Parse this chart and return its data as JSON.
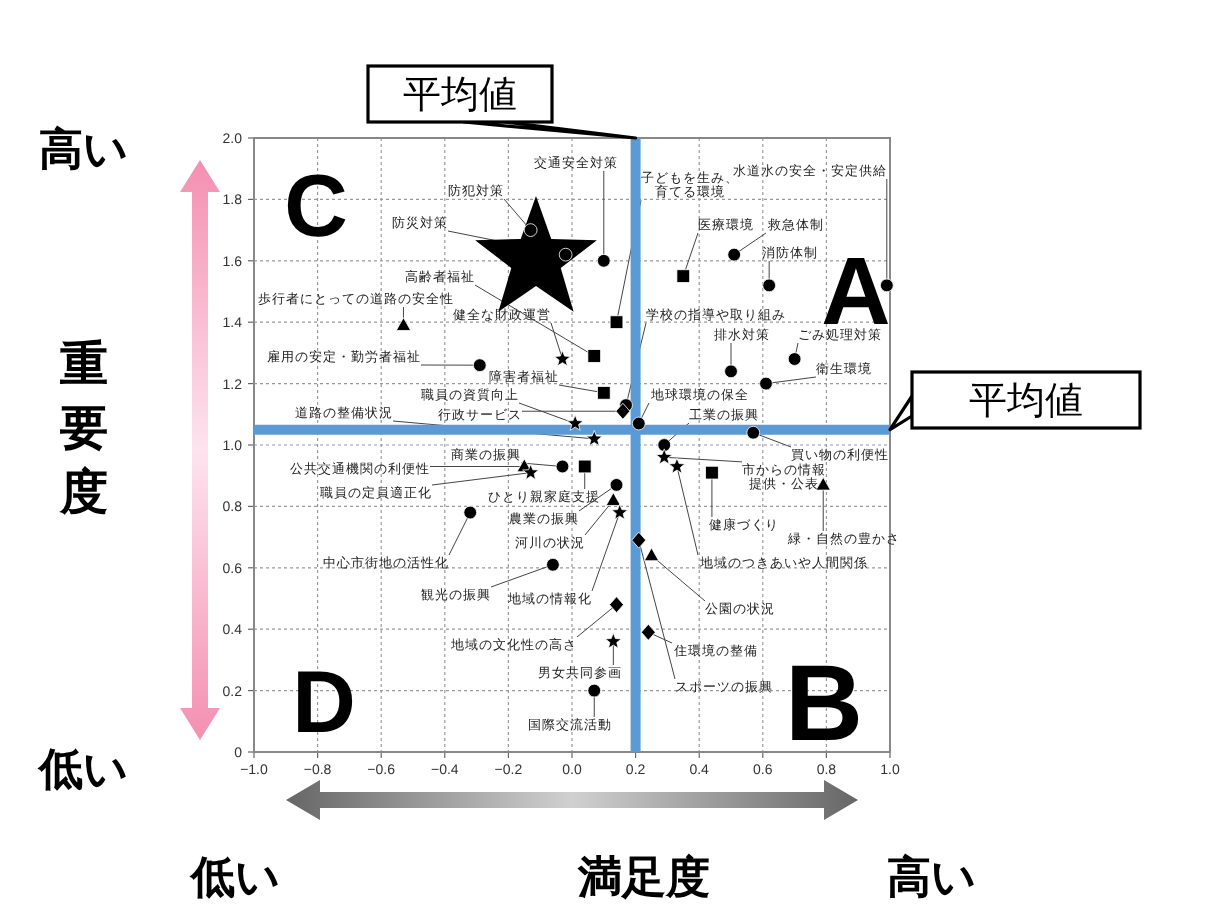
{
  "chart_data": {
    "type": "scatter",
    "xlabel": "満足度",
    "ylabel": "重要度",
    "xlim": [
      -1,
      1
    ],
    "ylim": [
      0,
      2
    ],
    "xticks": [
      {
        "value": -1,
        "label": "−1.0"
      },
      {
        "value": -0.8,
        "label": "−0.8"
      },
      {
        "value": -0.6,
        "label": "−0.6"
      },
      {
        "value": -0.4,
        "label": "−0.4"
      },
      {
        "value": -0.2,
        "label": "−0.2"
      },
      {
        "value": 0,
        "label": "0.0"
      },
      {
        "value": 0.2,
        "label": "0.2"
      },
      {
        "value": 0.4,
        "label": "0.4"
      },
      {
        "value": 0.6,
        "label": "0.6"
      },
      {
        "value": 0.8,
        "label": "0.8"
      },
      {
        "value": 1,
        "label": "1.0"
      }
    ],
    "yticks": [
      0,
      {
        "value": 0.2,
        "label": "0.2"
      },
      {
        "value": 0.4,
        "label": "0.4"
      },
      {
        "value": 0.6,
        "label": "0.6"
      },
      {
        "value": 0.8,
        "label": "0.8"
      },
      {
        "value": 1,
        "label": "1.0"
      },
      {
        "value": 1.2,
        "label": "1.2"
      },
      {
        "value": 1.4,
        "label": "1.4"
      },
      {
        "value": 1.6,
        "label": "1.6"
      },
      {
        "value": 1.8,
        "label": "1.8"
      },
      {
        "value": 2,
        "label": "2.0"
      }
    ],
    "grid": true,
    "series": [
      {
        "marker": "circle",
        "color": "#000000",
        "x": [
          0.1,
          -0.13,
          -0.02,
          0.99,
          0.51,
          0.62,
          0.17,
          0.5,
          0.7,
          -0.29,
          0.61,
          0.21,
          0.29,
          0.57,
          -0.03,
          0.14,
          -0.06,
          0.07
        ],
        "values": [
          1.6,
          1.7,
          1.62,
          1.52,
          1.62,
          1.52,
          1.13,
          1.24,
          1.28,
          1.26,
          1.2,
          1.07,
          1.0,
          1.04,
          0.93,
          0.87,
          0.61,
          0.2
        ]
      },
      {
        "marker": "square",
        "color": "#000000",
        "x": [
          0.14,
          0.35,
          0.07,
          0.1,
          0.04,
          0.44
        ],
        "values": [
          1.4,
          1.55,
          1.29,
          1.17,
          0.93,
          0.91
        ]
      },
      {
        "marker": "triangle",
        "color": "#000000",
        "x": [
          -0.53,
          -0.15,
          0.79,
          0.13,
          0.25
        ],
        "values": [
          1.39,
          0.93,
          0.87,
          0.82,
          0.64
        ]
      },
      {
        "marker": "star",
        "color": "#000000",
        "x": [
          -0.03,
          0.01,
          0.07,
          -0.13,
          0.29,
          0.33,
          0.15,
          0.13
        ],
        "values": [
          1.28,
          1.07,
          1.02,
          0.91,
          0.96,
          0.93,
          0.78,
          0.36
        ]
      },
      {
        "marker": "circle",
        "color": "#000000",
        "x": [
          -0.32
        ],
        "values": [
          0.78
        ]
      },
      {
        "marker": "diamond",
        "color": "#000000",
        "x": [
          0.16,
          0.21,
          0.24,
          0.14
        ],
        "values": [
          1.11,
          0.69,
          0.39,
          0.48
        ]
      }
    ],
    "ref_lines": [
      {
        "axis": "x",
        "value": 0.2,
        "label": "平均値",
        "color": "#5b9bd5"
      },
      {
        "axis": "y",
        "value": 1.05,
        "label": "平均値",
        "color": "#5b9bd5"
      }
    ],
    "annotations": [
      {
        "text": "交通安全対策",
        "x": 0.1,
        "y": 1.6
      },
      {
        "text": "防犯対策",
        "x": -0.13,
        "y": 1.7
      },
      {
        "text": "防災対策",
        "x": -0.02,
        "y": 1.62
      },
      {
        "text": "子どもを生み、育てる環境",
        "x": 0.14,
        "y": 1.4
      },
      {
        "text": "水道水の安全・安定供給",
        "x": 0.99,
        "y": 1.52
      },
      {
        "text": "救急体制",
        "x": 0.51,
        "y": 1.62
      },
      {
        "text": "医療環境",
        "x": 0.35,
        "y": 1.55
      },
      {
        "text": "消防体制",
        "x": 0.62,
        "y": 1.52
      },
      {
        "text": "高齢者福祉",
        "x": 0.07,
        "y": 1.29
      },
      {
        "text": "学校の指導や取り組み",
        "x": 0.17,
        "y": 1.13
      },
      {
        "text": "健全な財政運営",
        "x": -0.03,
        "y": 1.28
      },
      {
        "text": "歩行者にとっての道路の安全性",
        "x": -0.53,
        "y": 1.39
      },
      {
        "text": "排水対策",
        "x": 0.5,
        "y": 1.24
      },
      {
        "text": "ごみ処理対策",
        "x": 0.7,
        "y": 1.28
      },
      {
        "text": "雇用の安定・勤労者福祉",
        "x": -0.29,
        "y": 1.26
      },
      {
        "text": "衛生環境",
        "x": 0.61,
        "y": 1.2
      },
      {
        "text": "障害者福祉",
        "x": 0.1,
        "y": 1.17
      },
      {
        "text": "職員の資質向上",
        "x": 0.01,
        "y": 1.07
      },
      {
        "text": "地球環境の保全",
        "x": 0.21,
        "y": 1.07
      },
      {
        "text": "行政サービス",
        "x": 0.16,
        "y": 1.11
      },
      {
        "text": "道路の整備状況",
        "x": 0.07,
        "y": 1.02
      },
      {
        "text": "工業の振興",
        "x": 0.29,
        "y": 1.0
      },
      {
        "text": "買い物の利便性",
        "x": 0.57,
        "y": 1.04
      },
      {
        "text": "商業の振興",
        "x": -0.03,
        "y": 0.93
      },
      {
        "text": "公共交通機関の利便性",
        "x": -0.15,
        "y": 0.93
      },
      {
        "text": "ひとり親家庭支援",
        "x": 0.04,
        "y": 0.93
      },
      {
        "text": "職員の定員適正化",
        "x": -0.13,
        "y": 0.91
      },
      {
        "text": "市からの情報提供・公表",
        "x": 0.29,
        "y": 0.96
      },
      {
        "text": "地域のつきあいや人間関係",
        "x": 0.33,
        "y": 0.93
      },
      {
        "text": "健康づくり",
        "x": 0.44,
        "y": 0.91
      },
      {
        "text": "緑・自然の豊かさ",
        "x": 0.79,
        "y": 0.87
      },
      {
        "text": "農業の振興",
        "x": 0.14,
        "y": 0.87
      },
      {
        "text": "河川の状況",
        "x": 0.13,
        "y": 0.82
      },
      {
        "text": "地域の情報化",
        "x": 0.15,
        "y": 0.78
      },
      {
        "text": "中心市街地の活性化",
        "x": -0.32,
        "y": 0.78
      },
      {
        "text": "観光の振興",
        "x": -0.06,
        "y": 0.61
      },
      {
        "text": "公園の状況",
        "x": 0.25,
        "y": 0.64
      },
      {
        "text": "スポーツの振興",
        "x": 0.21,
        "y": 0.69
      },
      {
        "text": "住環境の整備",
        "x": 0.24,
        "y": 0.39
      },
      {
        "text": "地域の文化性の高さ",
        "x": 0.14,
        "y": 0.48
      },
      {
        "text": "男女共同参画",
        "x": 0.13,
        "y": 0.36
      },
      {
        "text": "国際交流活動",
        "x": 0.07,
        "y": 0.2
      },
      "A",
      "B",
      "C",
      "D",
      "高い",
      "低い",
      "低い",
      "高い"
    ]
  }
}
